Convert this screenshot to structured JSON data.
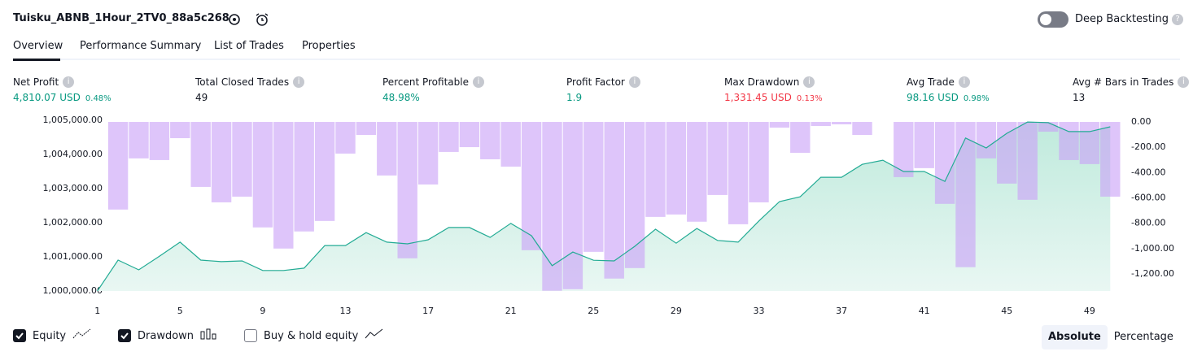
{
  "header": {
    "title": "Tuisku_ABNB_1Hour_2TV0_88a5c268",
    "toggle_label": "Deep Backtesting"
  },
  "tabs": [
    "Overview",
    "Performance Summary",
    "List of Trades",
    "Properties"
  ],
  "stats": [
    {
      "label": "Net Profit",
      "value": "4,810.07 USD",
      "extra": "0.48%",
      "tone": "positive"
    },
    {
      "label": "Total Closed Trades",
      "value": "49",
      "tone": "neutral"
    },
    {
      "label": "Percent Profitable",
      "value": "48.98%",
      "tone": "positive"
    },
    {
      "label": "Profit Factor",
      "value": "1.9",
      "tone": "positive"
    },
    {
      "label": "Max Drawdown",
      "value": "1,331.45 USD",
      "extra": "0.13%",
      "tone": "negative"
    },
    {
      "label": "Avg Trade",
      "value": "98.16 USD",
      "extra": "0.98%",
      "tone": "positive"
    },
    {
      "label": "Avg # Bars in Trades",
      "value": "13",
      "tone": "neutral"
    }
  ],
  "chart_data": {
    "type": "line",
    "x": [
      1,
      2,
      3,
      4,
      5,
      6,
      7,
      8,
      9,
      10,
      11,
      12,
      13,
      14,
      15,
      16,
      17,
      18,
      19,
      20,
      21,
      22,
      23,
      24,
      25,
      26,
      27,
      28,
      29,
      30,
      31,
      32,
      33,
      34,
      35,
      36,
      37,
      38,
      39,
      40,
      41,
      42,
      43,
      44,
      45,
      46,
      47,
      48,
      49,
      50
    ],
    "xlim": [
      0.5,
      50.5
    ],
    "xticks": [
      1,
      5,
      9,
      13,
      17,
      21,
      25,
      29,
      33,
      37,
      41,
      45,
      49
    ],
    "ylim": [
      1000000,
      1005000
    ],
    "yticks": [
      {
        "value": 1000000,
        "label": "1,000,000.00"
      },
      {
        "value": 1001000,
        "label": "1,001,000.00"
      },
      {
        "value": 1002000,
        "label": "1,002,000.00"
      },
      {
        "value": 1003000,
        "label": "1,003,000.00"
      },
      {
        "value": 1004000,
        "label": "1,004,000.00"
      },
      {
        "value": 1005000,
        "label": "1,005,000.00"
      }
    ],
    "y2lim": [
      -1335,
      13
    ],
    "y2ticks": [
      {
        "value": 0,
        "label": "0.00"
      },
      {
        "value": -200,
        "label": "-200.00"
      },
      {
        "value": -400,
        "label": "-400.00"
      },
      {
        "value": -600,
        "label": "-600.00"
      },
      {
        "value": -800,
        "label": "-800.00"
      },
      {
        "value": -1000,
        "label": "-1,000.00"
      },
      {
        "value": -1200,
        "label": "-1,200.00"
      }
    ],
    "series": [
      {
        "name": "Equity",
        "type": "line",
        "color": "#22ab94",
        "fill": "#d5f2ea",
        "values": [
          1000000,
          1000905,
          1000620,
          1001020,
          1001430,
          1000905,
          1000860,
          1000880,
          1000600,
          1000600,
          1000670,
          1001330,
          1001330,
          1001710,
          1001430,
          1001380,
          1001500,
          1001860,
          1001860,
          1001570,
          1001980,
          1001620,
          1000740,
          1001140,
          1000900,
          1000880,
          1001310,
          1001810,
          1001400,
          1001830,
          1001480,
          1001430,
          1002050,
          1002620,
          1002760,
          1003330,
          1003330,
          1003710,
          1003830,
          1003500,
          1003500,
          1003210,
          1004480,
          1004190,
          1004620,
          1004950,
          1004930,
          1004670,
          1004670,
          1004810
        ]
      },
      {
        "name": "Drawdown",
        "type": "bar",
        "axis": "y2",
        "color": "#c9a2f7",
        "x": [
          2,
          3,
          4,
          5,
          6,
          7,
          8,
          9,
          10,
          11,
          12,
          13,
          14,
          15,
          16,
          17,
          18,
          19,
          20,
          21,
          22,
          23,
          24,
          25,
          26,
          27,
          28,
          29,
          30,
          31,
          32,
          33,
          34,
          35,
          36,
          37,
          38,
          39,
          40,
          41,
          42,
          43,
          44,
          45,
          46,
          47,
          48,
          49,
          50
        ],
        "values": [
          -692,
          -288,
          -301,
          -128,
          -513,
          -635,
          -590,
          -833,
          -1000,
          -865,
          -782,
          -250,
          -103,
          -423,
          -1077,
          -494,
          -237,
          -199,
          -295,
          -353,
          -1013,
          -1333,
          -1321,
          -1026,
          -1237,
          -1154,
          -750,
          -731,
          -788,
          -577,
          -808,
          -635,
          -45,
          -244,
          -32,
          -19,
          -103,
          0,
          -436,
          -365,
          -647,
          -1147,
          -288,
          -487,
          -615,
          -77,
          -301,
          -333,
          -590
        ]
      }
    ]
  },
  "extra_toggles": [
    "Buy & hold equity"
  ],
  "view_modes": [
    "Absolute",
    "Percentage"
  ]
}
